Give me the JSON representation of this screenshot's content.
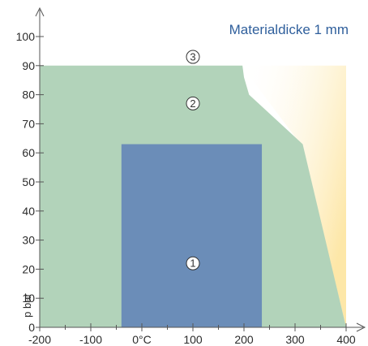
{
  "chart_data": {
    "type": "area",
    "title": "Materialdicke 1 mm",
    "xlabel": "",
    "ylabel": "p bar",
    "xlim": [
      -200,
      400
    ],
    "ylim": [
      0,
      100
    ],
    "x_ticks": [
      -200,
      -100,
      0,
      100,
      200,
      300,
      400
    ],
    "x_tick_labels": [
      "-200",
      "-100",
      "0°C",
      "100",
      "200",
      "300",
      "400"
    ],
    "y_ticks": [
      0,
      10,
      20,
      30,
      40,
      50,
      60,
      70,
      80,
      90,
      100
    ],
    "y_tick_labels": [
      "0",
      "10",
      "20",
      "30",
      "40",
      "50",
      "60",
      "70",
      "80",
      "90",
      "100"
    ],
    "grid": false,
    "regions": [
      {
        "label": "3",
        "color": "#fde7a8",
        "polygon": [
          [
            195,
            90
          ],
          [
            400,
            90
          ],
          [
            400,
            0
          ],
          [
            315,
            62
          ]
        ],
        "marker": [
          100,
          93
        ]
      },
      {
        "label": "2",
        "color": "#b2d3ba",
        "polygon": [
          [
            -200,
            0
          ],
          [
            400,
            0
          ],
          [
            315,
            63
          ],
          [
            210,
            80
          ],
          [
            200,
            86
          ],
          [
            197,
            90
          ],
          [
            -200,
            90
          ]
        ],
        "marker": [
          100,
          77
        ]
      },
      {
        "label": "1",
        "color": "#6b8db8",
        "polygon": [
          [
            -40,
            0
          ],
          [
            235,
            0
          ],
          [
            235,
            63
          ],
          [
            -40,
            63
          ]
        ],
        "marker": [
          100,
          22
        ]
      }
    ]
  }
}
